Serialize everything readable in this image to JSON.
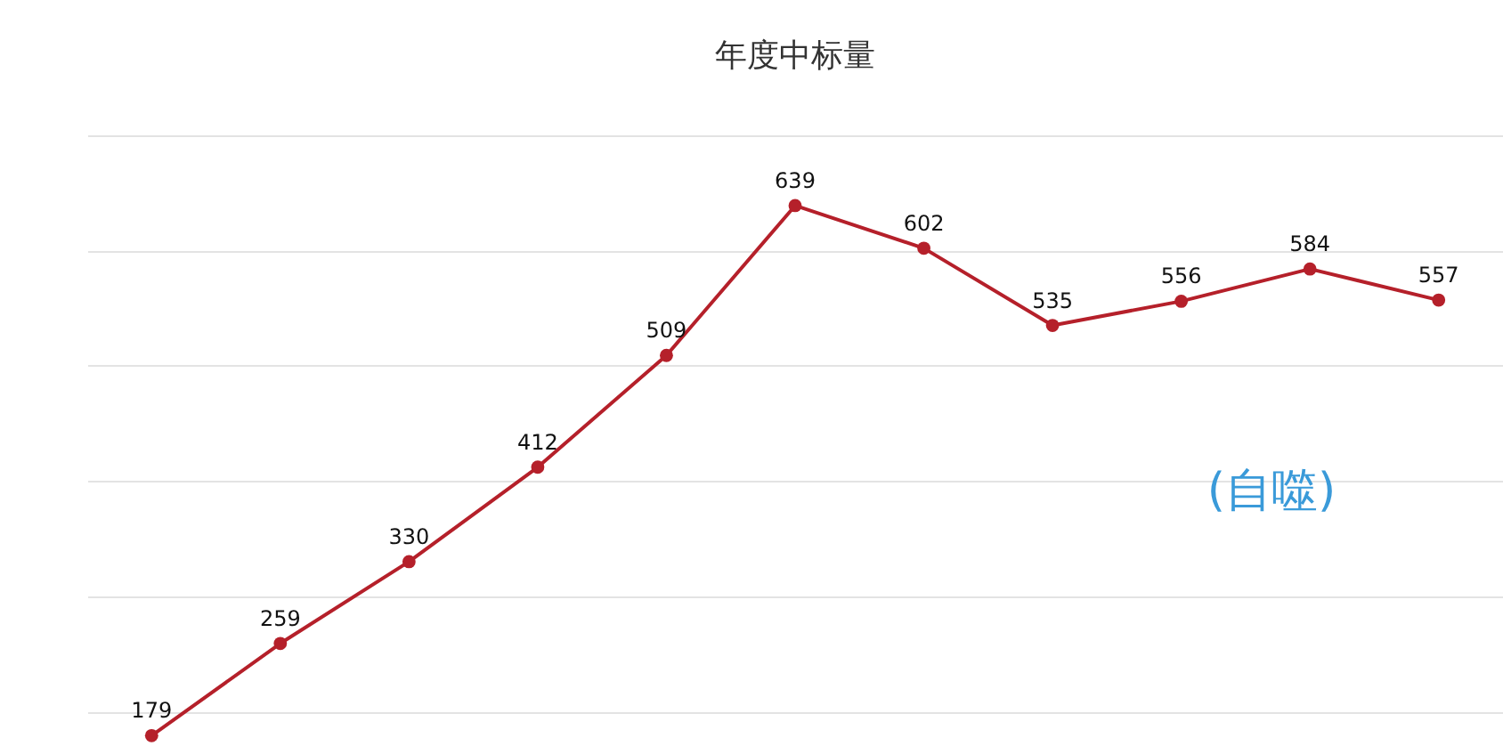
{
  "chart_data": {
    "type": "line",
    "title": "年度中标量",
    "categories": [
      null,
      null,
      null,
      null,
      null,
      null,
      null,
      null,
      null,
      null,
      null
    ],
    "series": [
      {
        "color": "#b5202a",
        "values": [
          179,
          259,
          330,
          412,
          509,
          639,
          602,
          535,
          556,
          584,
          557
        ]
      }
    ],
    "ylim": [
      170,
      700
    ],
    "yticks": [
      {
        "value": 200,
        "label": null
      },
      {
        "value": 300,
        "label": null
      },
      {
        "value": 400,
        "label": null
      },
      {
        "value": 500,
        "label": null
      },
      {
        "value": 600,
        "label": null
      },
      {
        "value": 700,
        "label": null
      }
    ],
    "grid": "y",
    "marker": "circle",
    "line_style": "solid",
    "data_labels": true,
    "annotations": [
      "(自噬)"
    ]
  }
}
